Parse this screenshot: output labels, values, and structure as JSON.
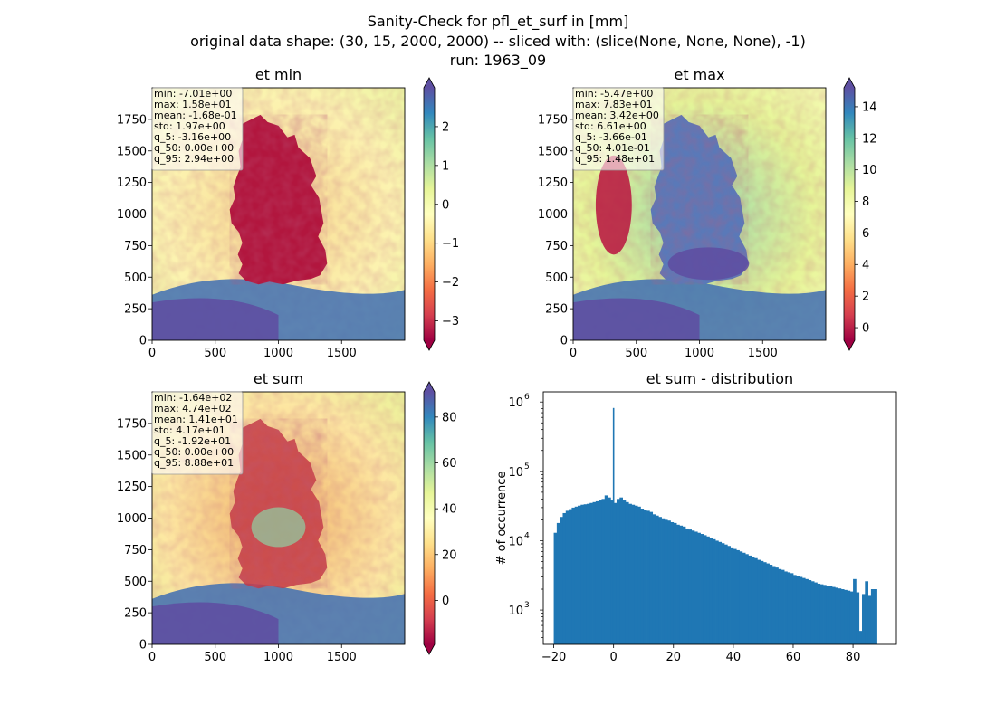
{
  "suptitle": {
    "line1": "Sanity-Check for pfl_et_surf in [mm]",
    "line2": "original data shape: (30, 15, 2000, 2000) -- sliced with: (slice(None, None, None), -1)",
    "line3": "run: 1963_09"
  },
  "maps": [
    {
      "title": "et min",
      "stats": [
        "min: -7.01e+00",
        "max: 1.58e+01",
        "mean: -1.68e-01",
        "std: 1.97e+00",
        "q_5: -3.16e+00",
        "q_50: 0.00e+00",
        "q_95: 2.94e+00"
      ],
      "colorbar_ticks": [
        -3,
        -2,
        -1,
        0,
        1,
        2
      ],
      "colorbar_tick_labels": [
        "−3",
        "−2",
        "−1",
        "0",
        "1",
        "2"
      ],
      "colorbar_range": [
        -3.5,
        3.0
      ],
      "dominant_pattern": "low"
    },
    {
      "title": "et max",
      "stats": [
        "min: -5.47e+00",
        "max: 7.83e+01",
        "mean: 3.42e+00",
        "std: 6.61e+00",
        "q_5: -3.66e-01",
        "q_50: 4.01e-01",
        "q_95: 1.48e+01"
      ],
      "colorbar_ticks": [
        0,
        2,
        4,
        6,
        8,
        10,
        12,
        14
      ],
      "colorbar_tick_labels": [
        "0",
        "2",
        "4",
        "6",
        "8",
        "10",
        "12",
        "14"
      ],
      "colorbar_range": [
        -0.8,
        15.2
      ],
      "dominant_pattern": "high"
    },
    {
      "title": "et sum",
      "stats": [
        "min: -1.64e+02",
        "max: 4.74e+02",
        "mean: 1.41e+01",
        "std: 4.17e+01",
        "q_5: -1.92e+01",
        "q_50: 0.00e+00",
        "q_95: 8.88e+01"
      ],
      "colorbar_ticks": [
        0,
        20,
        40,
        60,
        80
      ],
      "colorbar_tick_labels": [
        "0",
        "20",
        "40",
        "60",
        "80"
      ],
      "colorbar_range": [
        -19.2,
        91
      ],
      "dominant_pattern": "mixed"
    }
  ],
  "map_axes": {
    "x_ticks": [
      0,
      500,
      1000,
      1500
    ],
    "y_ticks": [
      0,
      250,
      500,
      750,
      1000,
      1250,
      1500,
      1750
    ],
    "range": [
      0,
      2000
    ]
  },
  "colormap": [
    "#9e0142",
    "#d53e4f",
    "#f46d43",
    "#fdae61",
    "#fee08b",
    "#ffffbf",
    "#e6f598",
    "#abdda4",
    "#66c2a5",
    "#3288bd",
    "#5e4fa2"
  ],
  "chart_data": {
    "type": "bar",
    "title": "et sum - distribution",
    "xlabel": "",
    "ylabel": "# of occurrence",
    "yscale": "log",
    "xlim": [
      -23.5,
      94.5
    ],
    "ylim": [
      320,
      1400000
    ],
    "x_ticks": [
      -20,
      0,
      20,
      40,
      60,
      80
    ],
    "x_tick_labels": [
      "−20",
      "0",
      "20",
      "40",
      "60",
      "80"
    ],
    "y_ticks": [
      1000,
      10000,
      100000,
      1000000
    ],
    "y_tick_labels": [
      "10",
      "10",
      "10",
      "10"
    ],
    "y_tick_exponents": [
      "3",
      "4",
      "5",
      "6"
    ],
    "bar_color": "#1f77b4",
    "bins": [
      {
        "x": -19.5,
        "y": 13000
      },
      {
        "x": -18.5,
        "y": 18000
      },
      {
        "x": -17.5,
        "y": 22000
      },
      {
        "x": -16.5,
        "y": 25000
      },
      {
        "x": -15.5,
        "y": 27000
      },
      {
        "x": -14.5,
        "y": 28500
      },
      {
        "x": -13.5,
        "y": 30000
      },
      {
        "x": -12.5,
        "y": 31000
      },
      {
        "x": -11.5,
        "y": 32000
      },
      {
        "x": -10.5,
        "y": 33000
      },
      {
        "x": -9.5,
        "y": 33500
      },
      {
        "x": -8.5,
        "y": 34000
      },
      {
        "x": -7.5,
        "y": 35000
      },
      {
        "x": -6.5,
        "y": 36000
      },
      {
        "x": -5.5,
        "y": 37000
      },
      {
        "x": -4.5,
        "y": 38000
      },
      {
        "x": -3.5,
        "y": 40000
      },
      {
        "x": -2.5,
        "y": 45000
      },
      {
        "x": -1.5,
        "y": 42000
      },
      {
        "x": -0.5,
        "y": 38000
      },
      {
        "x": 0.0,
        "y": 820000
      },
      {
        "x": 0.5,
        "y": 35000
      },
      {
        "x": 1.5,
        "y": 40000
      },
      {
        "x": 2.5,
        "y": 42000
      },
      {
        "x": 3.5,
        "y": 38000
      },
      {
        "x": 4.5,
        "y": 36000
      },
      {
        "x": 5.5,
        "y": 34000
      },
      {
        "x": 6.5,
        "y": 33000
      },
      {
        "x": 7.5,
        "y": 32000
      },
      {
        "x": 8.5,
        "y": 31000
      },
      {
        "x": 9.5,
        "y": 29000
      },
      {
        "x": 10.5,
        "y": 28000
      },
      {
        "x": 11.5,
        "y": 27000
      },
      {
        "x": 12.5,
        "y": 26000
      },
      {
        "x": 13.5,
        "y": 24000
      },
      {
        "x": 14.5,
        "y": 23000
      },
      {
        "x": 15.5,
        "y": 22000
      },
      {
        "x": 16.5,
        "y": 21000
      },
      {
        "x": 17.5,
        "y": 20000
      },
      {
        "x": 18.5,
        "y": 19500
      },
      {
        "x": 19.5,
        "y": 18500
      },
      {
        "x": 20.5,
        "y": 18000
      },
      {
        "x": 21.5,
        "y": 17000
      },
      {
        "x": 22.5,
        "y": 16500
      },
      {
        "x": 23.5,
        "y": 16000
      },
      {
        "x": 24.5,
        "y": 15000
      },
      {
        "x": 25.5,
        "y": 14500
      },
      {
        "x": 26.5,
        "y": 14000
      },
      {
        "x": 27.5,
        "y": 13500
      },
      {
        "x": 28.5,
        "y": 13000
      },
      {
        "x": 29.5,
        "y": 12500
      },
      {
        "x": 30.5,
        "y": 12000
      },
      {
        "x": 31.5,
        "y": 11500
      },
      {
        "x": 32.5,
        "y": 11000
      },
      {
        "x": 33.5,
        "y": 10500
      },
      {
        "x": 34.5,
        "y": 10000
      },
      {
        "x": 35.5,
        "y": 9600
      },
      {
        "x": 36.5,
        "y": 9200
      },
      {
        "x": 37.5,
        "y": 8800
      },
      {
        "x": 38.5,
        "y": 8400
      },
      {
        "x": 39.5,
        "y": 8000
      },
      {
        "x": 40.5,
        "y": 7600
      },
      {
        "x": 41.5,
        "y": 7300
      },
      {
        "x": 42.5,
        "y": 7000
      },
      {
        "x": 43.5,
        "y": 6700
      },
      {
        "x": 44.5,
        "y": 6400
      },
      {
        "x": 45.5,
        "y": 6100
      },
      {
        "x": 46.5,
        "y": 5800
      },
      {
        "x": 47.5,
        "y": 5600
      },
      {
        "x": 48.5,
        "y": 5300
      },
      {
        "x": 49.5,
        "y": 5100
      },
      {
        "x": 50.5,
        "y": 4900
      },
      {
        "x": 51.5,
        "y": 4700
      },
      {
        "x": 52.5,
        "y": 4500
      },
      {
        "x": 53.5,
        "y": 4300
      },
      {
        "x": 54.5,
        "y": 4100
      },
      {
        "x": 55.5,
        "y": 3900
      },
      {
        "x": 56.5,
        "y": 3800
      },
      {
        "x": 57.5,
        "y": 3600
      },
      {
        "x": 58.5,
        "y": 3500
      },
      {
        "x": 59.5,
        "y": 3400
      },
      {
        "x": 60.5,
        "y": 3200
      },
      {
        "x": 61.5,
        "y": 3100
      },
      {
        "x": 62.5,
        "y": 3000
      },
      {
        "x": 63.5,
        "y": 2900
      },
      {
        "x": 64.5,
        "y": 2800
      },
      {
        "x": 65.5,
        "y": 2700
      },
      {
        "x": 66.5,
        "y": 2600
      },
      {
        "x": 67.5,
        "y": 2500
      },
      {
        "x": 68.5,
        "y": 2400
      },
      {
        "x": 69.5,
        "y": 2350
      },
      {
        "x": 70.5,
        "y": 2300
      },
      {
        "x": 71.5,
        "y": 2250
      },
      {
        "x": 72.5,
        "y": 2200
      },
      {
        "x": 73.5,
        "y": 2150
      },
      {
        "x": 74.5,
        "y": 2100
      },
      {
        "x": 75.5,
        "y": 2050
      },
      {
        "x": 76.5,
        "y": 2000
      },
      {
        "x": 77.5,
        "y": 1950
      },
      {
        "x": 78.5,
        "y": 1900
      },
      {
        "x": 79.5,
        "y": 1850
      },
      {
        "x": 80.5,
        "y": 2800
      },
      {
        "x": 81.5,
        "y": 1800
      },
      {
        "x": 82.5,
        "y": 500
      },
      {
        "x": 83.5,
        "y": 1700
      },
      {
        "x": 84.5,
        "y": 2600
      },
      {
        "x": 85.5,
        "y": 1600
      },
      {
        "x": 86.5,
        "y": 2000
      },
      {
        "x": 87.5,
        "y": 2000
      }
    ]
  }
}
